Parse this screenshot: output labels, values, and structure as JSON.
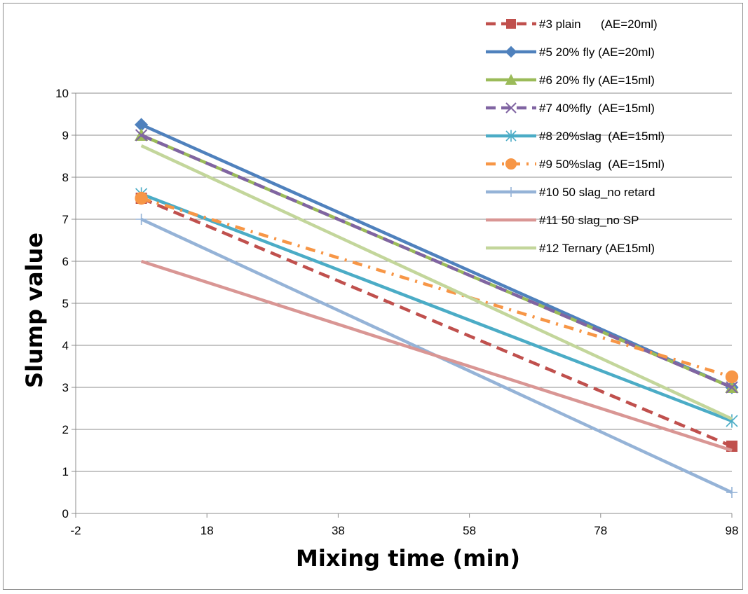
{
  "chart_data": {
    "type": "line",
    "title": "",
    "xlabel": "Mixing time (min)",
    "ylabel": "Slump value",
    "xlim": [
      -2,
      98
    ],
    "ylim": [
      0,
      10
    ],
    "x_ticks": [
      -2,
      18,
      38,
      58,
      78,
      98
    ],
    "y_ticks": [
      0,
      1,
      2,
      3,
      4,
      5,
      6,
      7,
      8,
      9,
      10
    ],
    "grid": "horizontal",
    "legend_position": "top-right",
    "series": [
      {
        "name": "#3 plain      (AE=20ml)",
        "x": [
          8,
          98
        ],
        "y": [
          7.5,
          1.6
        ],
        "color": "#c0504d",
        "dash": "dashed",
        "marker": "square"
      },
      {
        "name": "#5 20% fly (AE=20ml)",
        "x": [
          8,
          98
        ],
        "y": [
          9.25,
          3.0
        ],
        "color": "#4f81bd",
        "dash": "solid",
        "marker": "diamond"
      },
      {
        "name": "#6 20% fly (AE=15ml)",
        "x": [
          8,
          98
        ],
        "y": [
          9.0,
          3.0
        ],
        "color": "#9bbb59",
        "dash": "solid",
        "marker": "triangle"
      },
      {
        "name": "#7 40%fly  (AE=15ml)",
        "x": [
          8,
          98
        ],
        "y": [
          9.0,
          3.0
        ],
        "color": "#8064a2",
        "dash": "dashed",
        "marker": "x"
      },
      {
        "name": "#8 20%slag  (AE=15ml)",
        "x": [
          8,
          98
        ],
        "y": [
          7.6,
          2.2
        ],
        "color": "#4bacc6",
        "dash": "solid",
        "marker": "star"
      },
      {
        "name": "#9 50%slag  (AE=15ml)",
        "x": [
          8,
          98
        ],
        "y": [
          7.5,
          3.25
        ],
        "color": "#f79646",
        "dash": "dashdot",
        "marker": "circle"
      },
      {
        "name": "#10 50 slag_no retard",
        "x": [
          8,
          98
        ],
        "y": [
          7.0,
          0.5
        ],
        "color": "#95b3d7",
        "dash": "solid",
        "marker": "plus"
      },
      {
        "name": "#11 50 slag_no SP",
        "x": [
          8,
          98
        ],
        "y": [
          6.0,
          1.5
        ],
        "color": "#d99694",
        "dash": "solid",
        "marker": "none"
      },
      {
        "name": "#12 Ternary (AE15ml)",
        "x": [
          8,
          98
        ],
        "y": [
          8.75,
          2.25
        ],
        "color": "#c3d69b",
        "dash": "solid",
        "marker": "none"
      }
    ]
  }
}
